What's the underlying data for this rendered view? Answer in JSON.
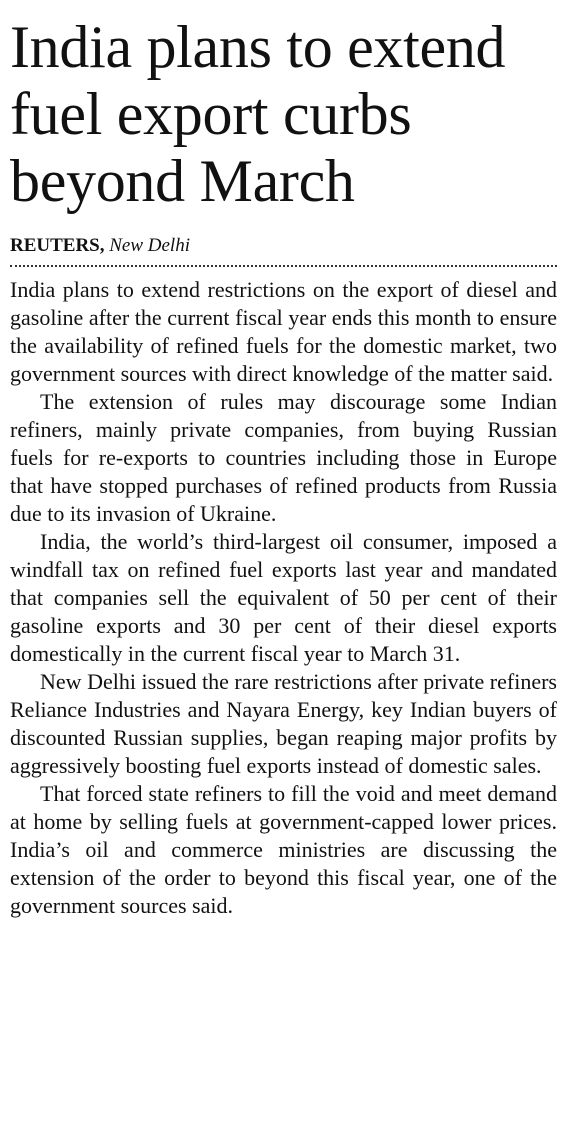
{
  "headline": "India plans to extend fuel export curbs beyond March",
  "byline": {
    "source": "REUTERS,",
    "location": "New Delhi"
  },
  "paragraphs": [
    "India plans to extend restrictions on the export of diesel and gasoline after the current fiscal year ends this month to ensure the availability of refined fuels for the domestic market, two government sources with direct knowledge of the matter said.",
    "The extension of rules may discourage some Indian refiners, mainly private companies, from buying Russian fuels for re-exports to countries including those in Europe that have stopped purchases of refined products from Russia due to its invasion of Ukraine.",
    "India, the world’s third-largest oil consumer, imposed a windfall tax on refined fuel exports last year and mandated that companies sell the equivalent of 50 per cent of their gasoline exports and 30 per cent of their diesel exports domestically in the current fiscal year to March 31.",
    "New Delhi issued the rare restrictions after private refiners Reliance Industries and Nayara Energy, key Indian buyers of discounted Russian supplies, began reaping major profits by aggressively boosting fuel exports instead of domestic sales.",
    "That forced state refiners to fill the void and meet demand at home by selling fuels at government-capped lower prices. India’s oil and commerce ministries are discussing the extension of the order to beyond this fiscal year, one of the government sources said."
  ]
}
